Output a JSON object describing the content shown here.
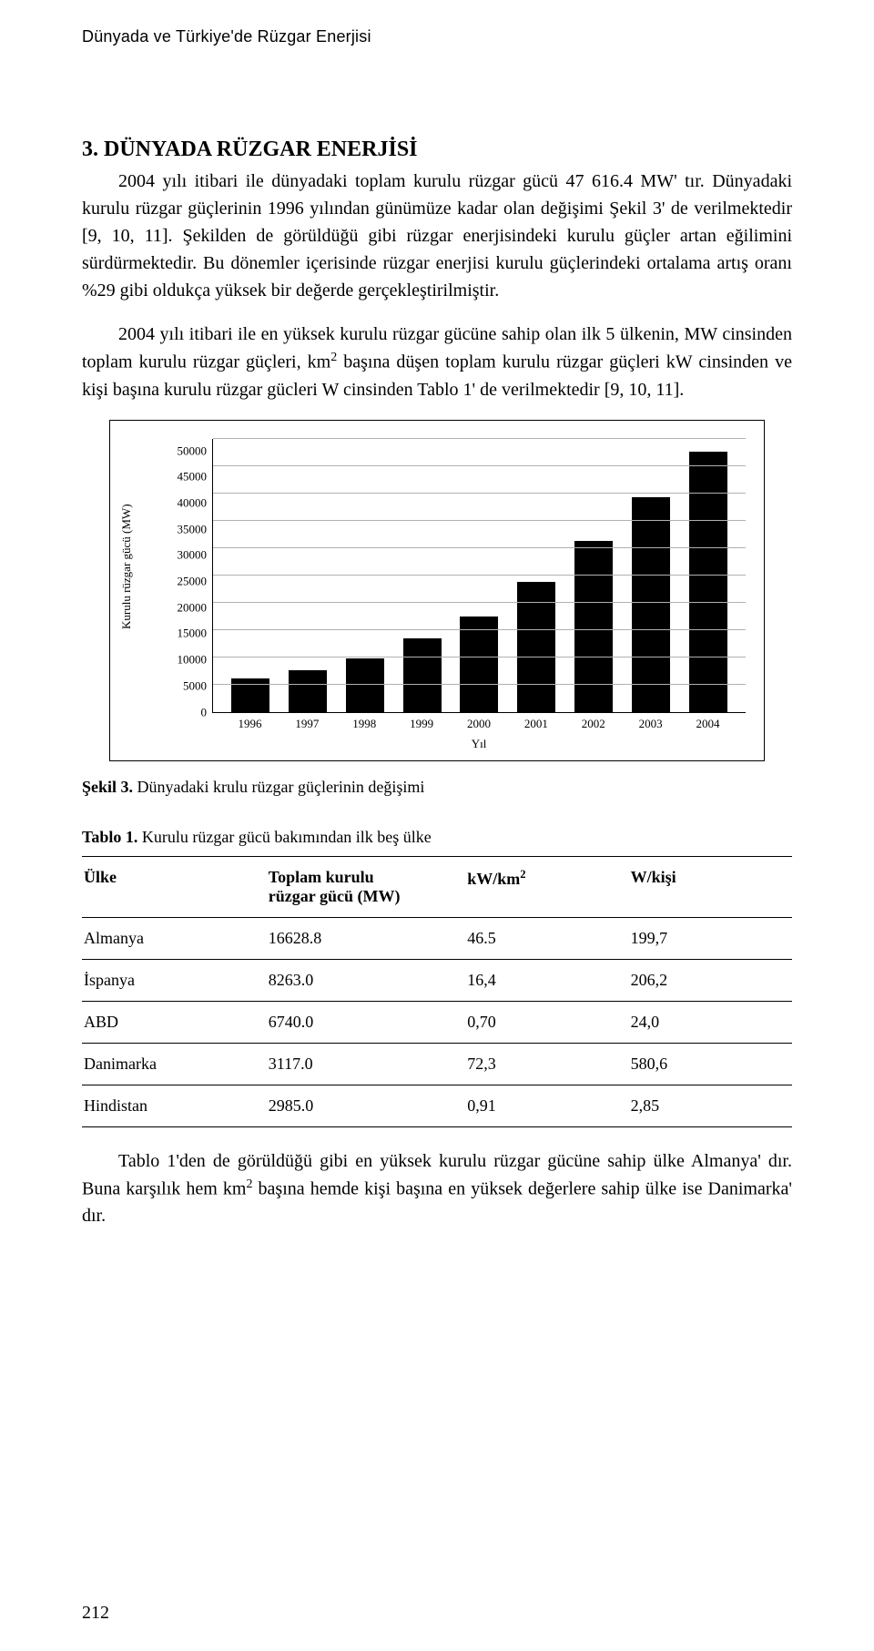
{
  "running_header": "Dünyada ve Türkiye'de Rüzgar Enerjisi",
  "section_title": "3. DÜNYADA RÜZGAR ENERJİSİ",
  "para_1a": "2004 yılı itibari ile dünyadaki toplam kurulu rüzgar gücü 47 616.4 MW' tır. Dünyadaki kurulu rüzgar güçlerinin 1996 yılından günümüze kadar olan değişimi Şekil 3' de verilmektedir [9, 10, 11]. Şekilden de görüldüğü gibi rüzgar enerjisindeki kurulu güçler artan eğilimini sürdürmektedir. Bu dönemler içerisinde rüzgar enerjisi kurulu güçlerindeki ortalama artış oranı %29 gibi oldukça yüksek bir değerde gerçekleştirilmiştir.",
  "para_2a": "2004 yılı itibari ile en yüksek kurulu rüzgar gücüne sahip olan ilk 5 ülkenin, MW cinsinden toplam kurulu rüzgar güçleri, km",
  "para_2b": " başına düşen toplam kurulu rüzgar güçleri kW cinsinden ve kişi başına kurulu rüzgar gücleri W cinsinden Tablo 1' de verilmektedir [9, 10, 11].",
  "chart": {
    "type": "bar",
    "y_label": "Kurulu rüzgar gücü (MW)",
    "x_label": "Yıl",
    "y_ticks": [
      "0",
      "5000",
      "10000",
      "15000",
      "20000",
      "25000",
      "30000",
      "35000",
      "40000",
      "45000",
      "50000"
    ],
    "y_max": 50000,
    "categories": [
      "1996",
      "1997",
      "1998",
      "1999",
      "2000",
      "2001",
      "2002",
      "2003",
      "2004"
    ],
    "values": [
      6100,
      7600,
      9800,
      13400,
      17400,
      23800,
      31200,
      39300,
      47600
    ],
    "bar_color": "#000000",
    "grid_color": "#b0b0b0",
    "background": "#ffffff",
    "label_fontsize": 13
  },
  "figure_caption_label": "Şekil 3.",
  "figure_caption_text": " Dünyadaki krulu rüzgar güçlerinin değişimi",
  "table_caption_label": "Tablo 1.",
  "table_caption_text": " Kurulu rüzgar gücü bakımından ilk beş ülke",
  "table": {
    "columns": [
      "Ülke",
      "Toplam kurulu rüzgar gücü (MW)",
      "kW/km²",
      "W/kişi"
    ],
    "col0": "Ülke",
    "col1_line1": "Toplam kurulu",
    "col1_line2": "rüzgar gücü (MW)",
    "col2_pre": "kW/km",
    "col3": "W/kişi",
    "rows": [
      [
        "Almanya",
        "16628.8",
        "46.5",
        "199,7"
      ],
      [
        "İspanya",
        "8263.0",
        "16,4",
        "206,2"
      ],
      [
        "ABD",
        "6740.0",
        "0,70",
        "24,0"
      ],
      [
        "Danimarka",
        "3117.0",
        "72,3",
        "580,6"
      ],
      [
        "Hindistan",
        "2985.0",
        "0,91",
        "2,85"
      ]
    ]
  },
  "para_3a": "Tablo 1'den de görüldüğü gibi en yüksek kurulu rüzgar gücüne sahip ülke Almanya' dır. Buna karşılık hem km",
  "para_3b": " başına hemde kişi başına en yüksek değerlere sahip ülke ise Danimarka' dır.",
  "page_number": "212"
}
